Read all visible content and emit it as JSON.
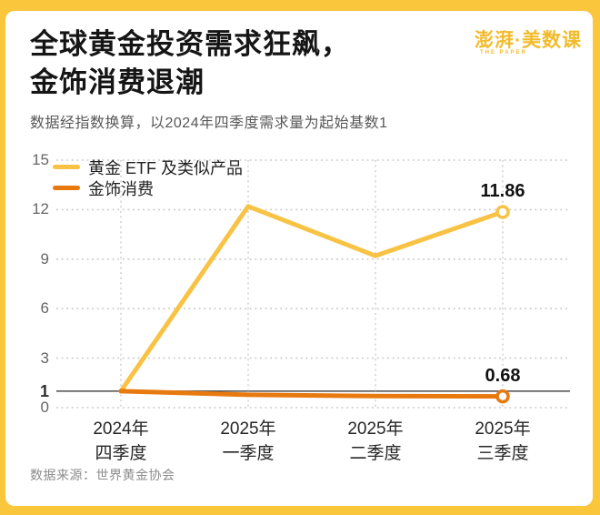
{
  "header": {
    "title_line1": "全球黄金投资需求狂飙，",
    "title_line2": "金饰消费退潮",
    "subtitle": "数据经指数换算，以2024年四季度需求量为起始基数1",
    "brand": {
      "name": "澎湃·美数课",
      "sub": "THE PAPER"
    }
  },
  "footer": {
    "source": "数据来源：世界黄金协会"
  },
  "colors": {
    "frame": "#F9C63C",
    "etf_line": "#F8C344",
    "jewelry_line": "#E8790F",
    "grid": "#C7C7C7",
    "baseline": "#4d4d4d",
    "brand": "#F2BB2C"
  },
  "chart_data": {
    "type": "line",
    "title": "全球黄金投资需求狂飙，金饰消费退潮",
    "subtitle": "数据经指数换算，以2024年四季度需求量为起始基数1",
    "xlabel": "",
    "ylabel": "",
    "categories": [
      [
        "2024年",
        "四季度"
      ],
      [
        "2025年",
        "一季度"
      ],
      [
        "2025年",
        "二季度"
      ],
      [
        "2025年",
        "三季度"
      ]
    ],
    "yticks": [
      0,
      1,
      3,
      6,
      9,
      12,
      15
    ],
    "ylim": [
      0,
      15
    ],
    "baseline_value": 1,
    "grid": "dotted",
    "legend_position": "top-left",
    "series": [
      {
        "name": "黄金 ETF 及类似产品",
        "color": "#F8C344",
        "values": [
          1,
          12.2,
          9.2,
          11.86
        ],
        "end_label": "11.86"
      },
      {
        "name": "金饰消费",
        "color": "#E8790F",
        "values": [
          1,
          0.78,
          0.7,
          0.68
        ],
        "end_label": "0.68"
      }
    ],
    "source": "数据来源：世界黄金协会"
  }
}
